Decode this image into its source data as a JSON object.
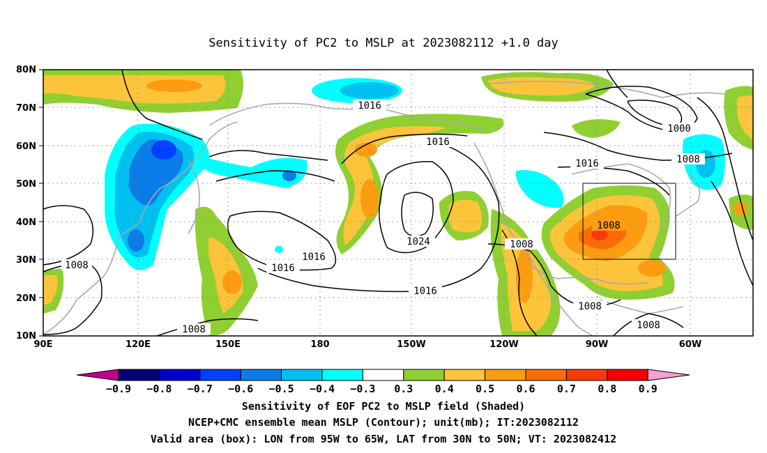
{
  "title": "Sensitivity of PC2 to MSLP at 2023082112 +1.0 day",
  "map": {
    "lon_labels": [
      "90E",
      "120E",
      "150E",
      "180",
      "150W",
      "120W",
      "90W",
      "60W"
    ],
    "lat_labels": [
      "80N",
      "70N",
      "60N",
      "50N",
      "40N",
      "30N",
      "20N",
      "10N"
    ],
    "contour_labels": [
      "1008",
      "1016",
      "1000",
      "1008",
      "1016",
      "1016",
      "1024",
      "1016",
      "1016",
      "1008",
      "1016",
      "1008",
      "1008",
      "1008",
      "1008"
    ],
    "valid_box": {
      "lon_min": "95W",
      "lon_max": "65W",
      "lat_min": "30N",
      "lat_max": "50N"
    }
  },
  "colorbar": {
    "labels": [
      "-0.9",
      "-0.8",
      "-0.7",
      "-0.6",
      "-0.5",
      "-0.4",
      "-0.3",
      "0.3",
      "0.4",
      "0.5",
      "0.6",
      "0.7",
      "0.8",
      "0.9"
    ],
    "colors": [
      "#c0008c",
      "#00007a",
      "#0000cd",
      "#0040ff",
      "#0a7ce8",
      "#00c0f0",
      "#00ffff",
      "#ffffff",
      "#8fcf32",
      "#fcc43a",
      "#fc9c10",
      "#fb6a0a",
      "#f83a0a",
      "#f30000",
      "#f8a0d0"
    ]
  },
  "caption": {
    "line1": "Sensitivity of EOF PC2 to MSLP field (Shaded)",
    "line2": "NCEP+CMC ensemble mean MSLP (Contour); unit(mb); IT:2023082112",
    "line3": "Valid area (box): LON from 95W to 65W, LAT from 30N to 50N; VT: 2023082412"
  }
}
